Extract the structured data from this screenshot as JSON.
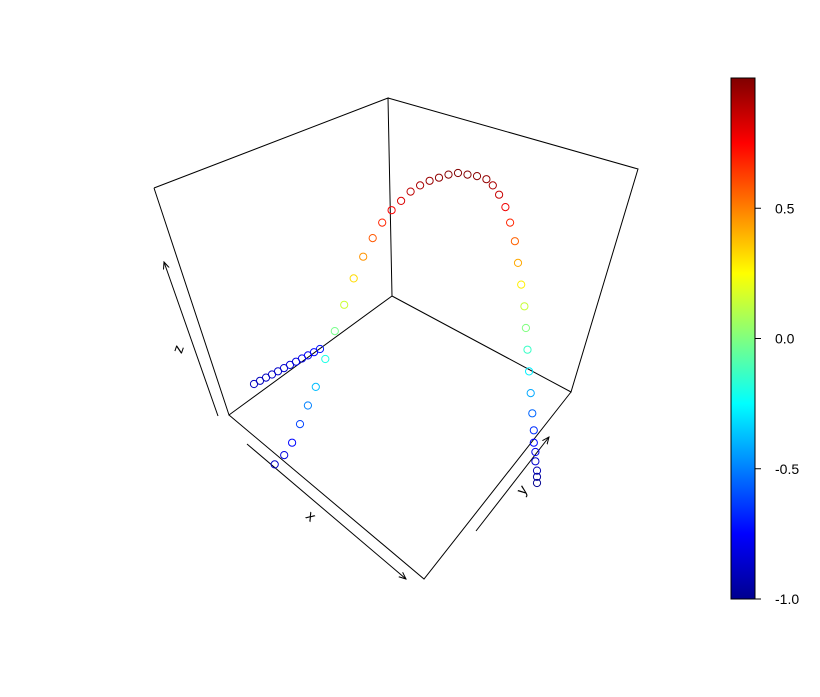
{
  "chart_data": {
    "type": "scatter",
    "subtype": "3d-scatter",
    "title": "",
    "axes": {
      "x": {
        "label": "x",
        "ticks": "none"
      },
      "y": {
        "label": "y",
        "ticks": "none"
      },
      "z": {
        "label": "z",
        "ticks": "none"
      }
    },
    "box": "full-box, back panels drawn",
    "marker": "open-circle",
    "color_variable": "z",
    "points": [
      [
        -1.0,
        0.0,
        -0.72
      ],
      [
        -0.99,
        0.0,
        -0.74
      ],
      [
        -0.98,
        0.0,
        -0.77
      ],
      [
        -0.96,
        0.0,
        -0.8
      ],
      [
        -0.94,
        0.0,
        -0.82
      ],
      [
        -0.91,
        0.0,
        -0.84
      ],
      [
        -0.88,
        0.0,
        -0.86
      ],
      [
        -0.85,
        0.0,
        -0.87
      ],
      [
        -0.82,
        0.0,
        -0.88
      ],
      [
        -0.78,
        0.0,
        -0.89
      ],
      [
        -0.74,
        0.0,
        -0.9
      ],
      [
        -0.7,
        0.0,
        -0.9
      ],
      [
        -0.66,
        0.0,
        -0.88
      ],
      [
        -0.6,
        0.0,
        -0.82
      ],
      [
        -0.55,
        0.0,
        -0.74
      ],
      [
        -0.5,
        0.0,
        -0.62
      ],
      [
        -0.45,
        0.0,
        -0.5
      ],
      [
        -0.4,
        0.0,
        -0.38
      ],
      [
        -0.34,
        0.0,
        -0.2
      ],
      [
        -0.28,
        0.0,
        -0.02
      ],
      [
        -0.22,
        0.0,
        0.15
      ],
      [
        -0.16,
        0.0,
        0.32
      ],
      [
        -0.1,
        0.0,
        0.46
      ],
      [
        -0.04,
        0.0,
        0.58
      ],
      [
        0.02,
        0.0,
        0.68
      ],
      [
        0.08,
        0.0,
        0.76
      ],
      [
        0.14,
        0.0,
        0.82
      ],
      [
        0.2,
        0.0,
        0.88
      ],
      [
        0.26,
        0.0,
        0.92
      ],
      [
        0.32,
        0.0,
        0.95
      ],
      [
        0.38,
        0.0,
        0.97
      ],
      [
        0.44,
        0.0,
        0.99
      ],
      [
        0.5,
        0.0,
        1.0
      ],
      [
        0.56,
        0.0,
        0.99
      ],
      [
        0.62,
        0.0,
        0.98
      ],
      [
        0.68,
        0.0,
        0.96
      ],
      [
        0.72,
        0.0,
        0.92
      ],
      [
        0.76,
        0.0,
        0.86
      ],
      [
        0.8,
        0.0,
        0.78
      ],
      [
        0.83,
        0.0,
        0.68
      ],
      [
        0.86,
        0.0,
        0.56
      ],
      [
        0.88,
        0.0,
        0.42
      ],
      [
        0.9,
        0.0,
        0.28
      ],
      [
        0.92,
        0.0,
        0.14
      ],
      [
        0.93,
        0.0,
        0.0
      ],
      [
        0.94,
        0.0,
        -0.14
      ],
      [
        0.95,
        0.0,
        -0.28
      ],
      [
        0.96,
        0.0,
        -0.42
      ],
      [
        0.97,
        0.0,
        -0.55
      ],
      [
        0.98,
        0.0,
        -0.66
      ],
      [
        0.98,
        0.0,
        -0.74
      ],
      [
        0.99,
        0.0,
        -0.8
      ],
      [
        0.99,
        0.0,
        -0.86
      ],
      [
        1.0,
        0.0,
        -0.92
      ],
      [
        1.0,
        0.0,
        -0.96
      ],
      [
        1.0,
        0.0,
        -1.0
      ]
    ],
    "colorbar": {
      "palette": "jet",
      "range": [
        -1.0,
        1.0
      ],
      "ticks": [
        {
          "value": 0.5,
          "label": "0.5"
        },
        {
          "value": 0.0,
          "label": "0.0"
        },
        {
          "value": -0.5,
          "label": "-0.5"
        },
        {
          "value": -1.0,
          "label": "-1.0"
        }
      ]
    }
  }
}
